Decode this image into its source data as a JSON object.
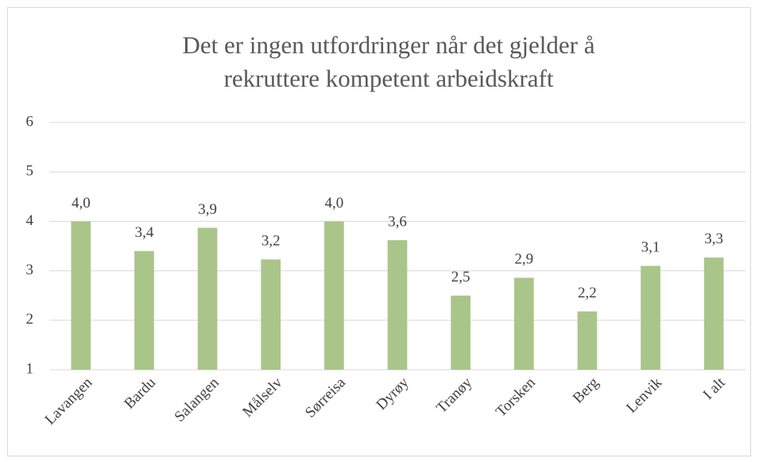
{
  "chart_data": {
    "type": "bar",
    "title": [
      "Det er ingen utfordringer når det gjelder å",
      "rekruttere kompetent arbeidskraft"
    ],
    "categories": [
      "Lavangen",
      "Bardu",
      "Salangen",
      "Målselv",
      "Sørreisa",
      "Dyrøy",
      "Tranøy",
      "Torsken",
      "Berg",
      "Lenvik",
      "I alt"
    ],
    "values": [
      4.0,
      3.4,
      3.87,
      3.23,
      4.0,
      3.62,
      2.5,
      2.86,
      2.18,
      3.1,
      3.27
    ],
    "value_labels": [
      "4,0",
      "3,4",
      "3,9",
      "3,2",
      "4,0",
      "3,6",
      "2,5",
      "2,9",
      "2,2",
      "3,1",
      "3,3"
    ],
    "color": "#aac58a",
    "ylim": [
      1,
      6
    ],
    "yticks": [
      1,
      2,
      3,
      4,
      5,
      6
    ],
    "grid": true
  }
}
